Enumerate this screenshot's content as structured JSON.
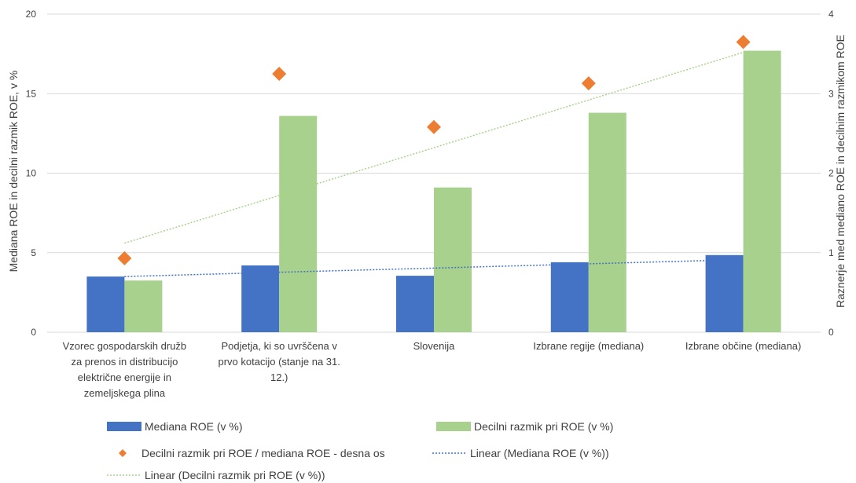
{
  "chart_data": {
    "type": "bar",
    "categories": [
      [
        "Vzorec gospodarskih družb",
        "za prenos in distribucijo",
        "električne energije in",
        "zemeljskega plina"
      ],
      [
        "Podjetja, ki so uvrščena v",
        "prvo kotacijo (stanje na 31.",
        "12.)"
      ],
      [
        "Slovenija"
      ],
      [
        "Izbrane regije (mediana)"
      ],
      [
        "Izbrane občine (mediana)"
      ]
    ],
    "series": [
      {
        "name": "Mediana ROE (v %)",
        "type": "bar",
        "axis": "left",
        "color": "#4472C4",
        "values": [
          3.5,
          4.2,
          3.55,
          4.4,
          4.85
        ]
      },
      {
        "name": "Decilni razmik pri ROE (v %)",
        "type": "bar",
        "axis": "left",
        "color": "#A9D18E",
        "values": [
          3.25,
          13.6,
          9.1,
          13.8,
          17.7
        ]
      },
      {
        "name": "Decilni razmik pri ROE / mediana ROE - desna os",
        "type": "scatter",
        "axis": "right",
        "color": "#ED7D31",
        "values": [
          0.93,
          3.25,
          2.58,
          3.13,
          3.65
        ]
      },
      {
        "name": "Linear (Mediana ROE (v %))",
        "type": "trendline",
        "axis": "left",
        "color": "#4472C4",
        "values": [
          3.5,
          3.77,
          4.03,
          4.3,
          4.57
        ]
      },
      {
        "name": "Linear (Decilni razmik pri ROE (v %))",
        "type": "trendline",
        "axis": "left",
        "color": "#A9D18E",
        "values": [
          5.6,
          8.6,
          11.6,
          14.6,
          17.6
        ]
      }
    ],
    "ylabel": "Mediana ROE in decilni razmik ROE, v %",
    "y2label": "Raznerje med mediano ROE in decilnim razmikom ROE",
    "ylim": [
      0,
      20
    ],
    "yticks": [
      0,
      5,
      10,
      15,
      20
    ],
    "y2lim": [
      0,
      4
    ],
    "y2ticks": [
      0,
      1,
      2,
      3,
      4
    ],
    "grid": true,
    "legend_position": "bottom"
  }
}
